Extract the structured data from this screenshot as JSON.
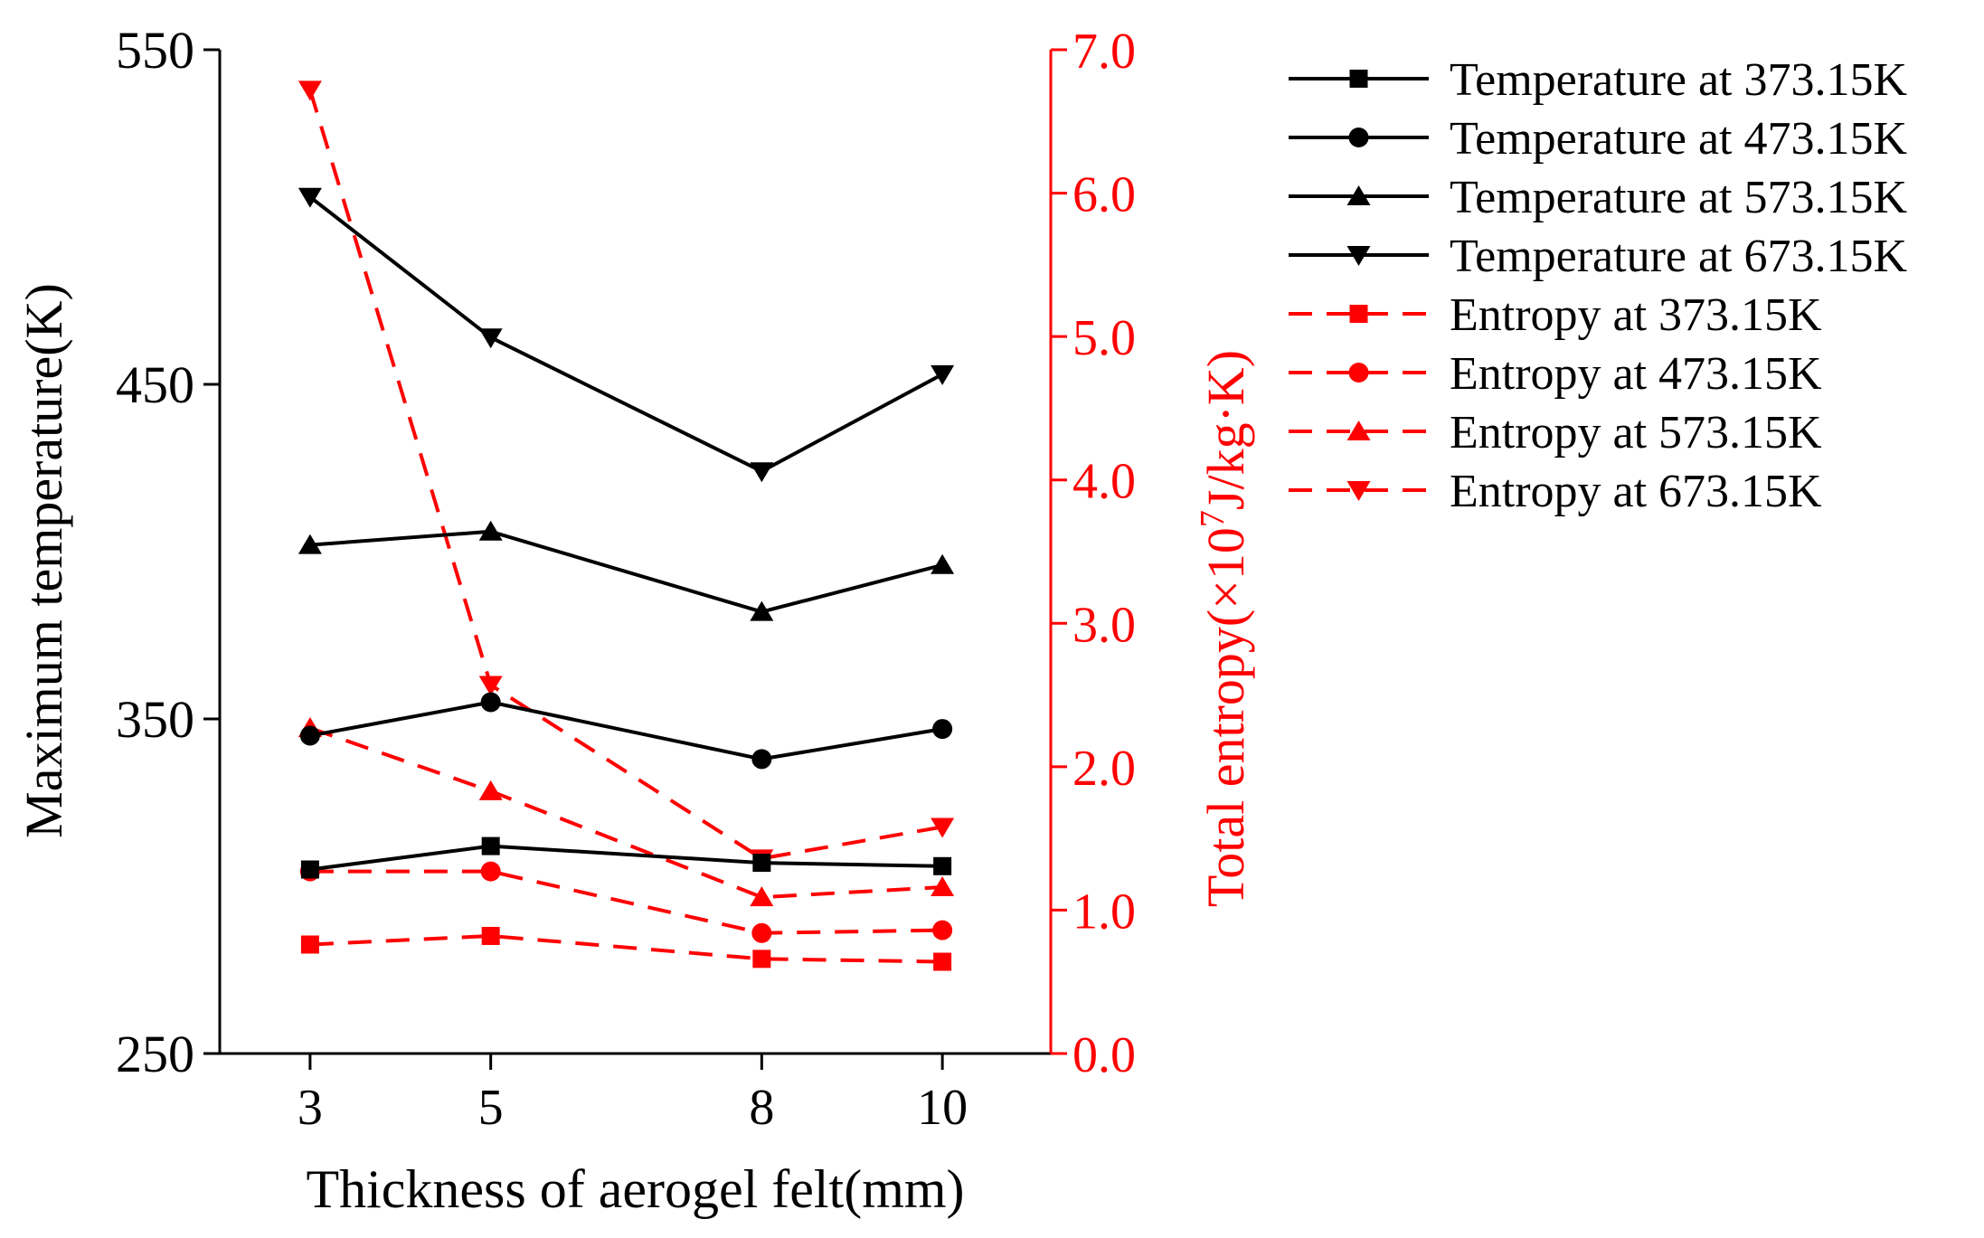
{
  "chart_data": {
    "type": "line",
    "x": [
      3,
      5,
      8,
      10
    ],
    "xticks": [
      "3",
      "5",
      "8",
      "10"
    ],
    "xlabel": "Thickness of aerogel felt(mm)",
    "ylabel_left": "Maximum temperature(K)",
    "ylabel_right_parts": [
      "Total entropy(×10",
      "7",
      "J/kg·K)"
    ],
    "ylim_left": [
      250,
      550
    ],
    "yticks_left": [
      "250",
      "350",
      "450",
      "550"
    ],
    "ylim_right": [
      0,
      7
    ],
    "yticks_right": [
      "0.0",
      "1.0",
      "2.0",
      "3.0",
      "4.0",
      "5.0",
      "6.0",
      "7.0"
    ],
    "legend_position": "right, outside",
    "colors": {
      "temperature": "#000000",
      "entropy": "#ff0000"
    },
    "series": [
      {
        "name": "Temperature at 373.15K",
        "axis": "left",
        "marker": "square",
        "style": "solid",
        "values": [
          305,
          312,
          307,
          306
        ]
      },
      {
        "name": "Temperature at 473.15K",
        "axis": "left",
        "marker": "circle",
        "style": "solid",
        "values": [
          345,
          355,
          338,
          347
        ]
      },
      {
        "name": "Temperature at 573.15K",
        "axis": "left",
        "marker": "triangle-up",
        "style": "solid",
        "values": [
          402,
          406,
          382,
          396
        ]
      },
      {
        "name": "Temperature at 673.15K",
        "axis": "left",
        "marker": "triangle-down",
        "style": "solid",
        "values": [
          506,
          464,
          424,
          453
        ]
      },
      {
        "name": "Entropy at 373.15K",
        "axis": "right",
        "marker": "square",
        "style": "dashed",
        "values": [
          0.76,
          0.82,
          0.66,
          0.64
        ]
      },
      {
        "name": "Entropy at 473.15K",
        "axis": "right",
        "marker": "circle",
        "style": "dashed",
        "values": [
          1.27,
          1.27,
          0.84,
          0.86
        ]
      },
      {
        "name": "Entropy at 573.15K",
        "axis": "right",
        "marker": "triangle-up",
        "style": "dashed",
        "values": [
          2.27,
          1.83,
          1.09,
          1.16
        ]
      },
      {
        "name": "Entropy at 673.15K",
        "axis": "right",
        "marker": "triangle-down",
        "style": "dashed",
        "values": [
          6.72,
          2.57,
          1.36,
          1.58
        ]
      }
    ]
  }
}
